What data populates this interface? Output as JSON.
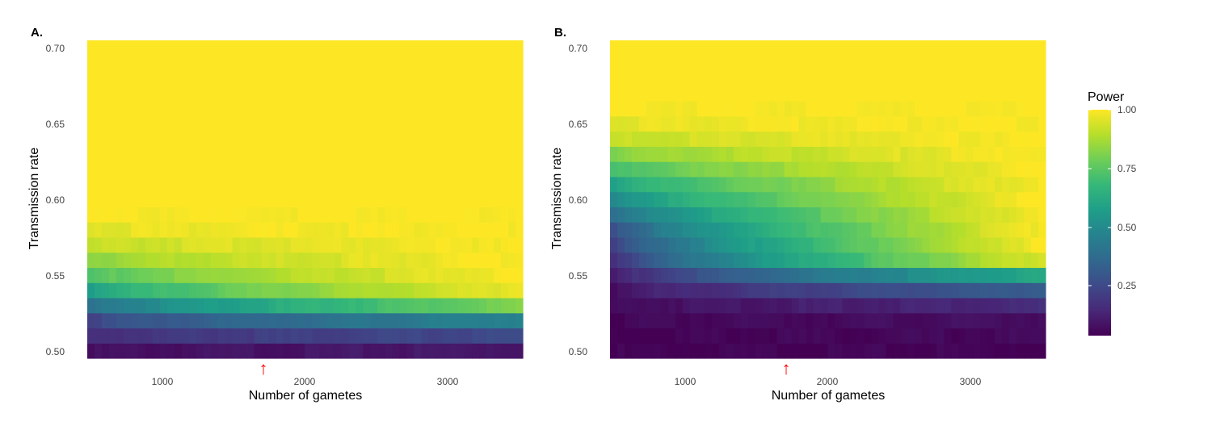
{
  "chart_data": [
    {
      "type": "heatmap",
      "panel": "A.",
      "xlabel": "Number of gametes",
      "ylabel": "Transmission rate",
      "x_ticks": [
        "1000",
        "2000",
        "3000"
      ],
      "y_ticks": [
        "0.50",
        "0.55",
        "0.60",
        "0.65",
        "0.70"
      ],
      "xlim": [
        500,
        3500
      ],
      "ylim": [
        0.495,
        0.705
      ],
      "x_step": 50,
      "y_step": 0.01,
      "rows": [
        {
          "y": 0.5,
          "start": 0.03,
          "end": 0.07
        },
        {
          "y": 0.51,
          "start": 0.13,
          "end": 0.22
        },
        {
          "y": 0.52,
          "start": 0.2,
          "end": 0.45
        },
        {
          "y": 0.53,
          "start": 0.35,
          "end": 0.8
        },
        {
          "y": 0.54,
          "start": 0.55,
          "end": 0.98
        },
        {
          "y": 0.55,
          "start": 0.7,
          "end": 1.0
        },
        {
          "y": 0.56,
          "start": 0.82,
          "end": 1.0
        },
        {
          "y": 0.57,
          "start": 0.9,
          "end": 1.0
        },
        {
          "y": 0.58,
          "start": 0.96,
          "end": 1.0
        },
        {
          "y": 0.59,
          "start": 0.99,
          "end": 1.0
        }
      ],
      "marker": {
        "x": 1700,
        "symbol": "↑",
        "color": "#ff0000"
      }
    },
    {
      "type": "heatmap",
      "panel": "B.",
      "xlabel": "Number of gametes",
      "ylabel": "Transmission rate",
      "x_ticks": [
        "1000",
        "2000",
        "3000"
      ],
      "y_ticks": [
        "0.50",
        "0.55",
        "0.60",
        "0.65",
        "0.70"
      ],
      "xlim": [
        500,
        3500
      ],
      "ylim": [
        0.495,
        0.705
      ],
      "x_step": 50,
      "y_step": 0.01,
      "rows": [
        {
          "y": 0.5,
          "start": 0.0,
          "end": 0.01
        },
        {
          "y": 0.51,
          "start": 0.0,
          "end": 0.02
        },
        {
          "y": 0.52,
          "start": 0.01,
          "end": 0.04
        },
        {
          "y": 0.53,
          "start": 0.02,
          "end": 0.12
        },
        {
          "y": 0.54,
          "start": 0.03,
          "end": 0.3
        },
        {
          "y": 0.55,
          "start": 0.05,
          "end": 0.6
        },
        {
          "y": 0.56,
          "start": 0.1,
          "end": 0.95
        },
        {
          "y": 0.57,
          "start": 0.15,
          "end": 1.0
        },
        {
          "y": 0.58,
          "start": 0.22,
          "end": 1.0
        },
        {
          "y": 0.59,
          "start": 0.32,
          "end": 1.0
        },
        {
          "y": 0.6,
          "start": 0.45,
          "end": 1.0
        },
        {
          "y": 0.61,
          "start": 0.55,
          "end": 1.0
        },
        {
          "y": 0.62,
          "start": 0.68,
          "end": 1.0
        },
        {
          "y": 0.63,
          "start": 0.8,
          "end": 1.0
        },
        {
          "y": 0.64,
          "start": 0.9,
          "end": 1.0
        },
        {
          "y": 0.65,
          "start": 0.96,
          "end": 1.0
        },
        {
          "y": 0.66,
          "start": 0.99,
          "end": 1.0
        }
      ],
      "marker": {
        "x": 1700,
        "symbol": "↑",
        "color": "#ff0000"
      }
    }
  ],
  "legend": {
    "title": "Power",
    "labels": [
      "1.00",
      "0.75",
      "0.50",
      "0.25"
    ],
    "values": [
      1.0,
      0.75,
      0.5,
      0.25
    ],
    "range": [
      0,
      1
    ]
  },
  "colors": {
    "viridis": [
      "#440154",
      "#482878",
      "#3e4a89",
      "#31688e",
      "#26828e",
      "#1f9e89",
      "#35b779",
      "#6ece58",
      "#b5de2b",
      "#fde725"
    ],
    "tick_text": "#444444",
    "axis_title": "#000000"
  }
}
